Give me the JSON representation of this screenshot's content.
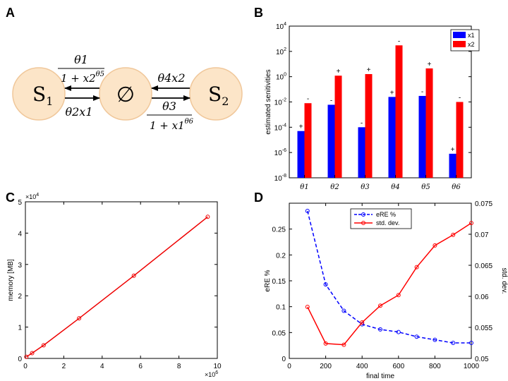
{
  "panels": {
    "A": {
      "letter": "A",
      "nodes": {
        "left": {
          "label": "S",
          "sub": "1"
        },
        "center": {
          "label": "∅"
        },
        "right": {
          "label": "S",
          "sub": "2"
        }
      },
      "rates": {
        "top_left_num": "θ1",
        "top_left_den_base": "1 + x2",
        "top_left_den_exp": "θ5",
        "bottom_left": "θ2x1",
        "top_right": "θ4x2",
        "bottom_right_num": "θ3",
        "bottom_right_den_base": "1 + x1",
        "bottom_right_den_exp": "θ6"
      },
      "colors": {
        "node_fill": "#fce5c8",
        "node_stroke": "#f0c79a"
      }
    },
    "B": {
      "letter": "B"
    },
    "C": {
      "letter": "C"
    },
    "D": {
      "letter": "D"
    }
  },
  "chart_data": [
    {
      "id": "B",
      "type": "bar",
      "scale": "log",
      "ylabel": "estimated senitivities",
      "categories": [
        "θ1",
        "θ2",
        "θ3",
        "θ4",
        "θ5",
        "θ6"
      ],
      "series": [
        {
          "name": "x1",
          "color": "#0000ff",
          "values": [
            5e-05,
            0.006,
            0.0001,
            0.025,
            0.03,
            8e-07
          ],
          "signs": [
            "+",
            "-",
            "-",
            "+",
            "-",
            "+"
          ]
        },
        {
          "name": "x2",
          "color": "#ff0000",
          "values": [
            0.008,
            1.2,
            1.6,
            300,
            4.5,
            0.01
          ],
          "signs": [
            "-",
            "+",
            "+",
            "-",
            "+",
            "-"
          ]
        }
      ],
      "ylim": [
        1e-08,
        10000.0
      ],
      "yticks": [
        {
          "value": 1e-08,
          "exp": "-8"
        },
        {
          "value": 1e-06,
          "exp": "-6"
        },
        {
          "value": 0.0001,
          "exp": "-4"
        },
        {
          "value": 0.01,
          "exp": "-2"
        },
        {
          "value": 1,
          "exp": "0"
        },
        {
          "value": 100,
          "exp": "2"
        },
        {
          "value": 10000.0,
          "exp": "4"
        }
      ],
      "legend": {
        "position": "top-right",
        "entries": [
          "x1",
          "x2"
        ]
      }
    },
    {
      "id": "C",
      "type": "line",
      "ylabel": "memory [MB]",
      "xlabel": "",
      "x_multiplier": "×10",
      "x_multiplier_exp": "6",
      "y_multiplier": "×10",
      "y_multiplier_exp": "4",
      "x": [
        0.05,
        0.35,
        0.95,
        2.8,
        5.65,
        9.5
      ],
      "y": [
        0.05,
        0.17,
        0.42,
        1.28,
        2.64,
        4.52
      ],
      "xlim": [
        0,
        10
      ],
      "ylim": [
        0,
        5
      ],
      "xticks": [
        "0",
        "2",
        "4",
        "6",
        "8",
        "10"
      ],
      "yticks": [
        "0",
        "1",
        "2",
        "3",
        "4",
        "5"
      ],
      "color": "#ee0000"
    },
    {
      "id": "D",
      "type": "line",
      "xlabel": "final time",
      "ylabel_left": "eRE %",
      "ylabel_right": "std. dev.",
      "x": [
        100,
        200,
        300,
        400,
        500,
        600,
        700,
        800,
        900,
        1000
      ],
      "xlim": [
        0,
        1000
      ],
      "xticks": [
        "0",
        "200",
        "400",
        "600",
        "800",
        "1000"
      ],
      "left_ylim": [
        0,
        0.3
      ],
      "left_yticks": [
        "0",
        "0.05",
        "0.1",
        "0.15",
        "0.2",
        "0.25"
      ],
      "right_ylim": [
        0.05,
        0.075
      ],
      "right_yticks": [
        "0.05",
        "0.055",
        "0.06",
        "0.065",
        "0.07",
        "0.075"
      ],
      "series": [
        {
          "name": "eRE %",
          "axis": "left",
          "color": "#0000ff",
          "dash": true,
          "values": [
            0.285,
            0.143,
            0.092,
            0.066,
            0.056,
            0.051,
            0.042,
            0.036,
            0.03,
            0.03
          ]
        },
        {
          "name": "std. dev.",
          "axis": "right",
          "color": "#ff0000",
          "dash": false,
          "values": [
            0.0583,
            0.0524,
            0.0522,
            0.0558,
            0.0585,
            0.0602,
            0.0647,
            0.0682,
            0.0699,
            0.0718
          ]
        }
      ],
      "legend": {
        "position": "top-center",
        "entries": [
          "eRE %",
          "std. dev."
        ]
      }
    }
  ]
}
